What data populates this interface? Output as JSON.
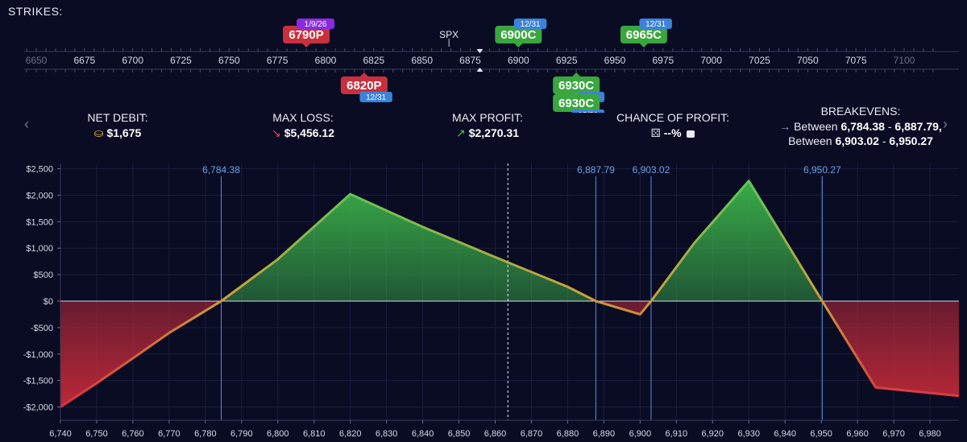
{
  "strikes_label": "STRIKES:",
  "underlying": "SPX",
  "ruler": {
    "min": 6650,
    "max": 7100,
    "step": 25,
    "minor_step": 5,
    "ticks": [
      "6650",
      "6675",
      "6700",
      "6725",
      "6750",
      "6775",
      "6800",
      "6825",
      "6850",
      "6875",
      "6900",
      "6925",
      "6950",
      "6975",
      "7000",
      "7025",
      "7050",
      "7075",
      "7100"
    ],
    "spot": 6864,
    "marker": 6880
  },
  "strike_tags": [
    {
      "label": "6790P",
      "strike": 6790,
      "side": "above",
      "color": "#c9303e",
      "badge": "1/9/26",
      "badge_color": "#8a2be2",
      "row": 0
    },
    {
      "label": "6900C",
      "strike": 6900,
      "side": "above",
      "color": "#3aa63e",
      "badge": "12/31",
      "badge_color": "#3b82d9",
      "row": 0
    },
    {
      "label": "6965C",
      "strike": 6965,
      "side": "above",
      "color": "#3aa63e",
      "badge": "12/31",
      "badge_color": "#3b82d9",
      "row": 0
    },
    {
      "label": "6820P",
      "strike": 6820,
      "side": "below",
      "color": "#c9303e",
      "badge": "12/31",
      "badge_color": "#3b82d9",
      "row": 0
    },
    {
      "label": "6930C",
      "strike": 6930,
      "side": "below",
      "color": "#3aa63e",
      "badge": "12/31",
      "badge_color": "#3b82d9",
      "row": 0
    },
    {
      "label": "6930C",
      "strike": 6930,
      "side": "below",
      "color": "#3aa63e",
      "badge": "12/31",
      "badge_color": "#3b82d9",
      "row": 1
    }
  ],
  "stats": {
    "net_debit": {
      "label": "NET DEBIT:",
      "value": "$1,675",
      "icon": "coins-icon"
    },
    "max_loss": {
      "label": "MAX LOSS:",
      "value": "$5,456.12",
      "icon": "arrow-down-right-icon"
    },
    "max_profit": {
      "label": "MAX PROFIT:",
      "value": "$2,270.31",
      "icon": "arrow-up-right-icon"
    },
    "chance": {
      "label": "CHANCE OF PROFIT:",
      "value": "--%",
      "icon": "dice-icon",
      "lock": "lock-icon"
    },
    "breakevens": {
      "label": "BREAKEVENS:",
      "line1_prefix": "Between ",
      "line1_a": "6,784.38",
      "line1_sep": " - ",
      "line1_b": "6,887.79,",
      "line2_prefix": "Between ",
      "line2_a": "6,903.02",
      "line2_sep": " - ",
      "line2_b": "6,950.27"
    }
  },
  "chart_data": {
    "type": "line",
    "title": "",
    "xlabel": "",
    "ylabel": "",
    "xlim": [
      6740,
      6988
    ],
    "ylim": [
      -2250,
      2600
    ],
    "x_ticks": [
      6740,
      6750,
      6760,
      6770,
      6780,
      6790,
      6800,
      6810,
      6820,
      6830,
      6840,
      6850,
      6860,
      6870,
      6880,
      6890,
      6900,
      6910,
      6920,
      6930,
      6940,
      6950,
      6960,
      6970,
      6980
    ],
    "x_tick_labels": [
      "6,740",
      "6,750",
      "6,760",
      "6,770",
      "6,780",
      "6,790",
      "6,800",
      "6,810",
      "6,820",
      "6,830",
      "6,840",
      "6,850",
      "6,860",
      "6,870",
      "6,880",
      "6,890",
      "6,900",
      "6,910",
      "6,920",
      "6,930",
      "6,940",
      "6,950",
      "6,960",
      "6,970",
      "6,980"
    ],
    "y_ticks": [
      2500,
      2000,
      1500,
      1000,
      500,
      0,
      -500,
      -1000,
      -1500,
      -2000
    ],
    "y_tick_labels": [
      "$2,500",
      "$2,000",
      "$1,500",
      "$1,000",
      "$500",
      "$0",
      "-$500",
      "-$1,000",
      "-$1,500",
      "-$2,000"
    ],
    "grid": true,
    "series": [
      {
        "x": [
          6740,
          6750,
          6760,
          6770,
          6784.38,
          6800,
          6820,
          6840,
          6860,
          6880,
          6887.79,
          6900,
          6903.02,
          6915,
          6930,
          6940,
          6950.27,
          6965,
          6988
        ],
        "y": [
          -2000,
          -1550,
          -1080,
          -600,
          0,
          790,
          2020,
          1400,
          830,
          270,
          0,
          -250,
          0,
          1100,
          2270,
          1150,
          0,
          -1630,
          -1790
        ]
      }
    ],
    "breakevens": [
      6784.38,
      6887.79,
      6903.02,
      6950.27
    ],
    "breakeven_labels": [
      "6,784.38",
      "6,887.79",
      "6,903.02",
      "6,950.27"
    ],
    "current_price": 6863.5
  }
}
